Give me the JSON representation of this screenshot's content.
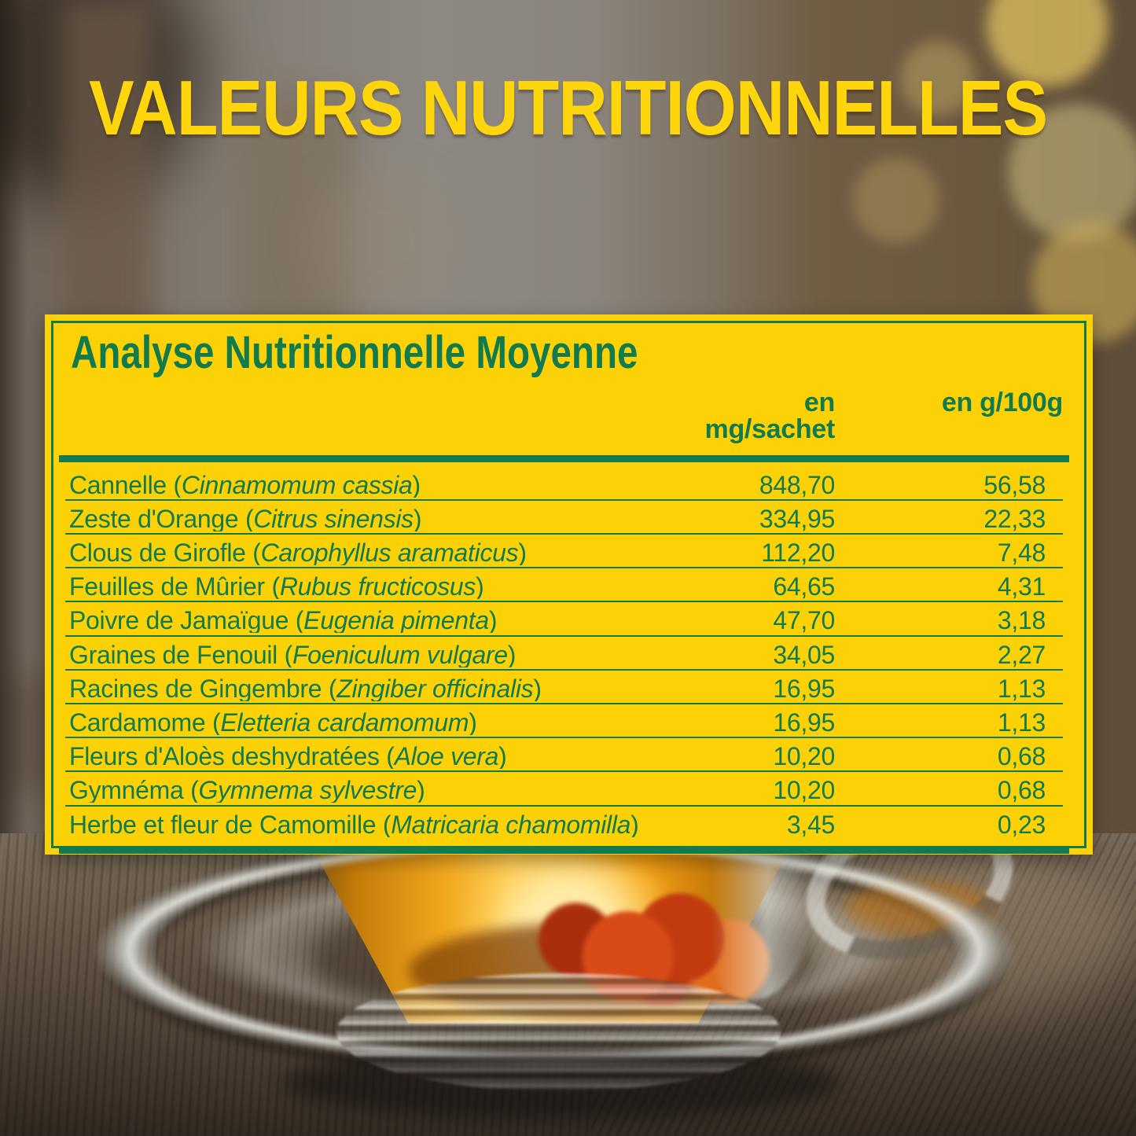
{
  "page_title": "VALEURS NUTRITIONNELLES",
  "panel": {
    "title": "Analyse Nutritionnelle Moyenne",
    "columns": {
      "mg": "en mg/sachet",
      "g": "en g/100g"
    },
    "rows": [
      {
        "text": "Cannelle (",
        "latin": "Cinnamomum cassia",
        "text_after": ")",
        "mg": "848,70",
        "g": "56,58"
      },
      {
        "text": "Zeste d'Orange (",
        "latin": "Citrus sinensis",
        "text_after": ")",
        "mg": "334,95",
        "g": "22,33"
      },
      {
        "text": "Clous de Girofle (",
        "latin": "Carophyllus aramaticus",
        "text_after": ")",
        "mg": "112,20",
        "g": "7,48"
      },
      {
        "text": "Feuilles de Mûrier (",
        "latin": "Rubus fructicosus",
        "text_after": ")",
        "mg": "64,65",
        "g": "4,31"
      },
      {
        "text": "Poivre de Jamaïgue (",
        "latin": "Eugenia pimenta",
        "text_after": ")",
        "mg": "47,70",
        "g": "3,18"
      },
      {
        "text": "Graines de Fenouil (",
        "latin": "Foeniculum vulgare",
        "text_after": ")",
        "mg": "34,05",
        "g": "2,27"
      },
      {
        "text": "Racines de Gingembre (",
        "latin": "Zingiber officinalis",
        "text_after": ")",
        "mg": "16,95",
        "g": "1,13"
      },
      {
        "text": "Cardamome (",
        "latin": "Eletteria cardamomum",
        "text_after": ")",
        "mg": "16,95",
        "g": "1,13"
      },
      {
        "text": "Fleurs d'Aloès deshydratées (",
        "latin": "Aloe vera",
        "text_after": ")",
        "mg": "10,20",
        "g": "0,68"
      },
      {
        "text": "Gymnéma (",
        "latin": "Gymnema sylvestre",
        "text_after": ")",
        "mg": "10,20",
        "g": "0,68"
      },
      {
        "text": "Herbe et fleur de Camomille (",
        "latin": "Matricaria chamomilla",
        "text_after": ")",
        "mg": "3,45",
        "g": "0,23"
      }
    ]
  },
  "colors": {
    "accent_yellow": "#FFD60B",
    "panel_yellow": "#FCD206",
    "green": "#117A4E"
  }
}
